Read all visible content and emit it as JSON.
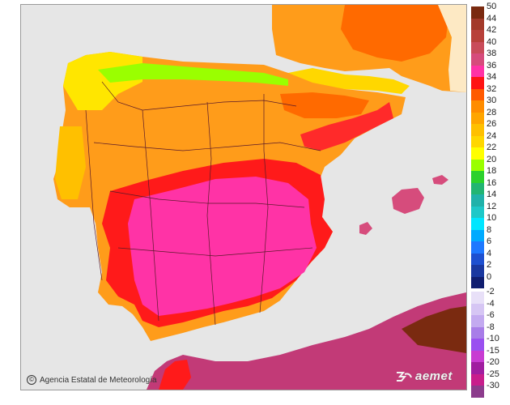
{
  "credit": "Agencia Estatal de Meteorología",
  "logo_text": "aemet",
  "icons": {
    "credit": "copyright-icon",
    "logo": "aemet-logo-icon"
  },
  "colors": {
    "sea": "#e6e6e6",
    "land_default": "#ff9c1a",
    "foreign_land": "#fde9c4",
    "north_africa": "#c23a77"
  },
  "legend": {
    "positive": [
      {
        "label": "50",
        "color": "#7a2a10"
      },
      {
        "label": "44",
        "color": "#a33a2a"
      },
      {
        "label": "42",
        "color": "#b8413a"
      },
      {
        "label": "40",
        "color": "#c94c5a"
      },
      {
        "label": "38",
        "color": "#d64c7c"
      },
      {
        "label": "36",
        "color": "#ff33a6"
      },
      {
        "label": "34",
        "color": "#ff1414"
      },
      {
        "label": "32",
        "color": "#ff5a00"
      },
      {
        "label": "30",
        "color": "#ff8c00"
      },
      {
        "label": "28",
        "color": "#ffa500"
      },
      {
        "label": "26",
        "color": "#ffc000"
      },
      {
        "label": "24",
        "color": "#ffd700"
      },
      {
        "label": "22",
        "color": "#ffff00"
      },
      {
        "label": "20",
        "color": "#9aff00"
      },
      {
        "label": "18",
        "color": "#2dd12d"
      },
      {
        "label": "16",
        "color": "#22b573"
      },
      {
        "label": "14",
        "color": "#20b2aa"
      },
      {
        "label": "12",
        "color": "#1ec8c8"
      },
      {
        "label": "10",
        "color": "#00e6ff"
      },
      {
        "label": "8",
        "color": "#00aaff"
      },
      {
        "label": "6",
        "color": "#1e78ff"
      },
      {
        "label": "4",
        "color": "#1e50d0"
      },
      {
        "label": "2",
        "color": "#1a38a0"
      },
      {
        "label": "0",
        "color": "#101e70"
      }
    ],
    "negative": [
      {
        "label": "-2",
        "color": "#e8e0f8"
      },
      {
        "label": "-4",
        "color": "#d6c6f4"
      },
      {
        "label": "-6",
        "color": "#c3aaf0"
      },
      {
        "label": "-8",
        "color": "#a87de8"
      },
      {
        "label": "-10",
        "color": "#9a50f0"
      },
      {
        "label": "-15",
        "color": "#c83cd2"
      },
      {
        "label": "-20",
        "color": "#a01ea0"
      },
      {
        "label": "-25",
        "color": "#c81e8c"
      },
      {
        "label": "-30",
        "color": "#8c3c8c"
      }
    ]
  }
}
